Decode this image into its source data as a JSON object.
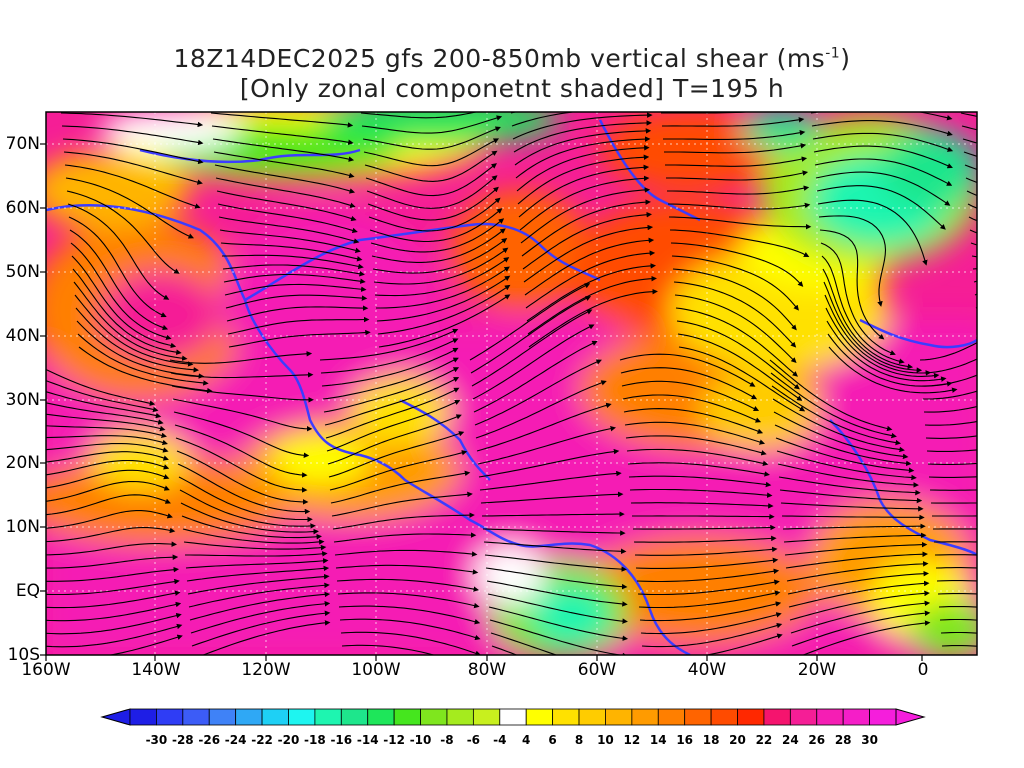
{
  "title": {
    "line1_prefix": "18Z14DEC2025 gfs 200-850mb vertical shear (ms",
    "line1_sup": "-1",
    "line1_suffix": ")",
    "line2": "[Only zonal componetnt shaded] T=195 h"
  },
  "axes": {
    "lat_labels": [
      "70N",
      "60N",
      "50N",
      "40N",
      "30N",
      "20N",
      "10N",
      "EQ",
      "10S"
    ],
    "lon_labels": [
      "160W",
      "140W",
      "120W",
      "100W",
      "80W",
      "60W",
      "40W",
      "20W",
      "0"
    ],
    "lat_range": [
      -10,
      75
    ],
    "lon_range": [
      -160,
      10
    ]
  },
  "colorbar": {
    "labels": [
      "-30",
      "-28",
      "-26",
      "-24",
      "-22",
      "-20",
      "-18",
      "-16",
      "-14",
      "-12",
      "-10",
      "-8",
      "-6",
      "-4",
      "4",
      "6",
      "8",
      "10",
      "12",
      "14",
      "16",
      "18",
      "20",
      "22",
      "24",
      "26",
      "28",
      "30"
    ],
    "colors": [
      "#1e1ee6",
      "#2f3df5",
      "#3c5cf7",
      "#3f82f7",
      "#2fa8f5",
      "#1ed0f5",
      "#1ef5f0",
      "#1ef5b0",
      "#1ee68c",
      "#1ee65a",
      "#45e61e",
      "#7fe61e",
      "#a5eb1e",
      "#c8f01e",
      "#ffffff",
      "#ffff00",
      "#ffe100",
      "#ffcc00",
      "#ffb400",
      "#ff9b00",
      "#ff7f00",
      "#ff6400",
      "#ff4b00",
      "#ff2800",
      "#f5146e",
      "#f51e96",
      "#f51eb4",
      "#f51ec8",
      "#f51edc"
    ]
  },
  "colors": {
    "coastline": "#3c3cff",
    "streamline": "#000000",
    "contour": "#8c1eb4",
    "grid": "#ffffff"
  }
}
